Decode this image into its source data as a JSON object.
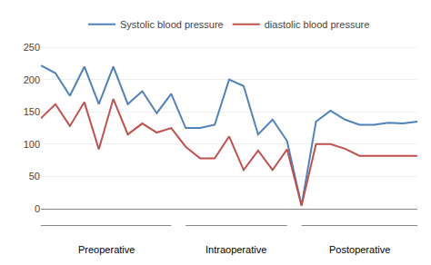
{
  "chart_data": {
    "type": "line",
    "categories": [
      null,
      null,
      null,
      null,
      null,
      null,
      null,
      null,
      null,
      null,
      null,
      null,
      null,
      null,
      null,
      null,
      null,
      null,
      null,
      null,
      null,
      null,
      null,
      null,
      null,
      null,
      null
    ],
    "series": [
      {
        "name": "Systolic blood pressure",
        "color": "#4F81BD",
        "values": [
          222,
          210,
          175,
          220,
          162,
          220,
          162,
          182,
          148,
          178,
          125,
          125,
          130,
          200,
          190,
          115,
          138,
          105,
          5,
          135,
          152,
          138,
          130,
          130,
          133,
          132,
          135
        ]
      },
      {
        "name": "diastolic blood pressure",
        "color": "#C0504D",
        "values": [
          140,
          162,
          128,
          165,
          92,
          170,
          115,
          132,
          118,
          125,
          96,
          78,
          78,
          112,
          60,
          90,
          60,
          92,
          5,
          100,
          100,
          93,
          82,
          82,
          82,
          82,
          82
        ]
      }
    ],
    "ylim": [
      0,
      260
    ],
    "yticks": [
      0,
      50,
      100,
      150,
      200,
      250
    ],
    "grid": true,
    "legend": "top",
    "annotations": [
      {
        "text": "Preoperative",
        "start": 0,
        "end": 9
      },
      {
        "text": "Intraoperative",
        "start": 10,
        "end": 17
      },
      {
        "text": "Postoperative",
        "start": 18,
        "end": 26
      }
    ]
  }
}
